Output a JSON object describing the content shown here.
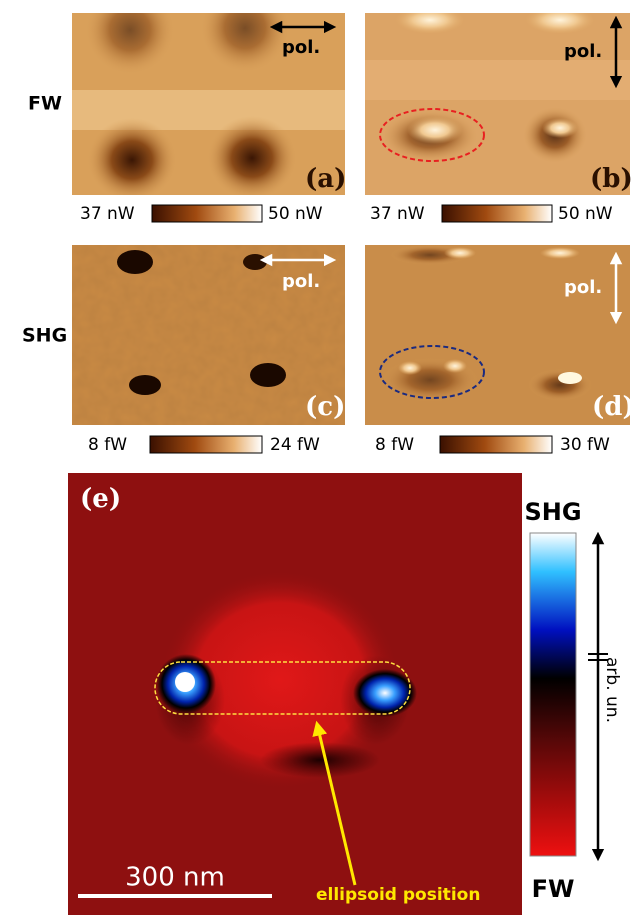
{
  "row_labels": [
    "FW",
    "SHG"
  ],
  "panels": [
    {
      "label": "(a)",
      "pol": "pol.",
      "scale_min": "37 nW",
      "scale_max": "50 nW"
    },
    {
      "label": "(b)",
      "pol": "pol.",
      "scale_min": "37 nW",
      "scale_max": "50 nW"
    },
    {
      "label": "(c)",
      "pol": "pol.",
      "scale_min": "8 fW",
      "scale_max": "24 fW"
    },
    {
      "label": "(d)",
      "pol": "pol.",
      "scale_min": "8 fW",
      "scale_max": "30 fW"
    }
  ],
  "panel_e": {
    "label": "(e)",
    "scale_bar": "300 nm",
    "annotation": "ellipsoid position",
    "colorbar_top": "SHG",
    "colorbar_bottom": "FW",
    "colorbar_axis": "arb. un."
  }
}
